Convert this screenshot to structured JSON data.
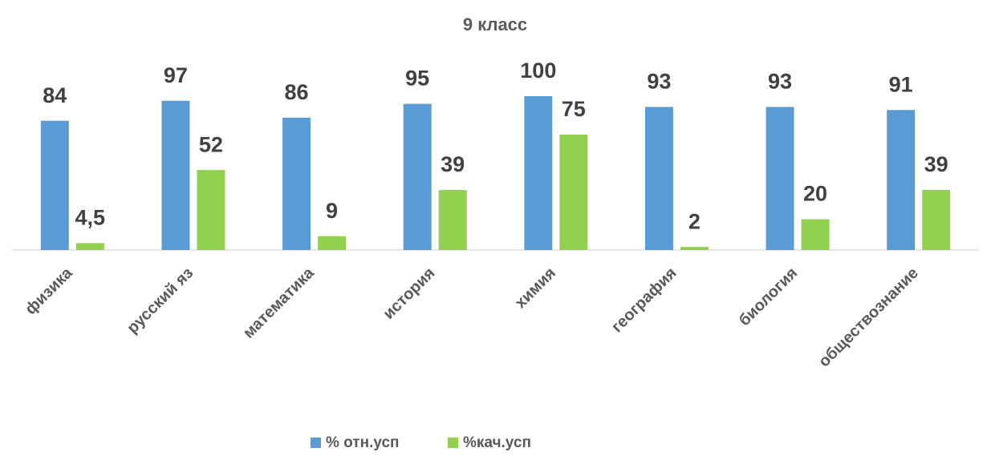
{
  "chart_data": {
    "type": "bar",
    "title": "9 класс",
    "categories": [
      "физика",
      "русский яз",
      "математика",
      "история",
      "химия",
      "география",
      "биология",
      "обществознание"
    ],
    "series": [
      {
        "name": "% отн.усп",
        "color": "#5b9bd5",
        "values": [
          84,
          97,
          86,
          95,
          100,
          93,
          93,
          91
        ]
      },
      {
        "name": "%кач.усп",
        "color": "#92d050",
        "values": [
          4.5,
          52,
          9,
          39,
          75,
          2,
          20,
          39
        ],
        "value_labels": [
          "4,5",
          "52",
          "9",
          "39",
          "75",
          "2",
          "20",
          "39"
        ]
      }
    ]
  }
}
